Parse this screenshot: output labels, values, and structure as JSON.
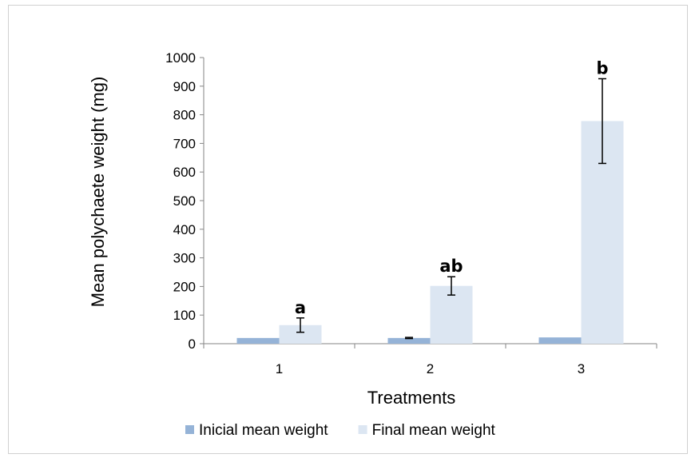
{
  "chart_data": {
    "type": "bar",
    "title": "",
    "xlabel": "Treatments",
    "ylabel": "Mean polychaete weight  (mg)",
    "categories": [
      "1",
      "2",
      "3"
    ],
    "ylim": [
      0,
      1000
    ],
    "yticks": [
      0,
      100,
      200,
      300,
      400,
      500,
      600,
      700,
      800,
      900,
      1000
    ],
    "grid": false,
    "legend_position": "bottom",
    "series": [
      {
        "name": "Inicial mean weight",
        "color": "#95B3D7",
        "values": [
          20,
          20,
          22
        ],
        "errors": [
          0,
          2,
          0
        ]
      },
      {
        "name": "Final mean weight",
        "color": "#DCE6F2",
        "values": [
          65,
          202,
          778
        ],
        "errors": [
          25,
          32,
          148
        ]
      }
    ],
    "annotations": [
      "a",
      "ab",
      "b"
    ]
  }
}
